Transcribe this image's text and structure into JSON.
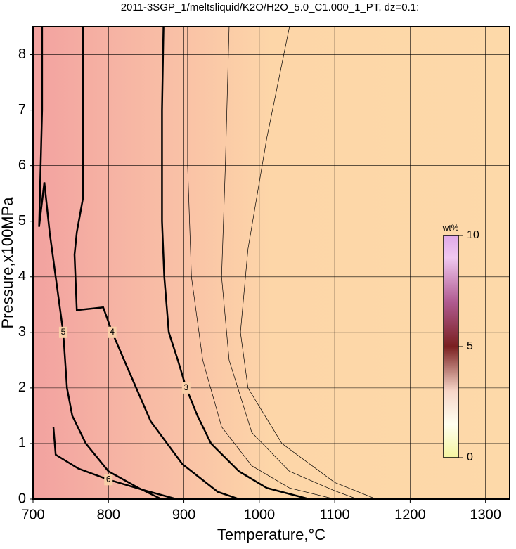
{
  "chart_data": {
    "type": "contour",
    "title": "2011-3SGP_1/meltsliquid/K2O/H2O_5.0_C1.000_1_PT, dz=0.1:",
    "x_label": "Temperature,°C",
    "y_label": "Pressure,x100MPa",
    "xlim": [
      700,
      1332
    ],
    "ylim": [
      0,
      8.5
    ],
    "xticks": [
      700,
      800,
      900,
      1000,
      1100,
      1200,
      1300
    ],
    "yticks": [
      0,
      1,
      2,
      3,
      4,
      5,
      6,
      7,
      8
    ],
    "grid": true,
    "contours": [
      {
        "level": 3,
        "x": [
          873,
          871,
          871,
          874,
          880,
          892,
          903,
          918,
          936,
          973,
          1010,
          1066
        ],
        "y": [
          8.5,
          7,
          5,
          4,
          3,
          2.5,
          2,
          1.5,
          1,
          0.5,
          0.2,
          0
        ]
      },
      {
        "level": 4,
        "x": [
          766,
          766,
          766,
          758,
          755,
          758,
          793,
          805,
          824,
          840,
          856,
          898,
          945,
          973
        ],
        "y": [
          8.5,
          7,
          5.4,
          4.8,
          4.4,
          3.4,
          3.45,
          3,
          2.4,
          1.9,
          1.4,
          0.63,
          0.13,
          0
        ]
      },
      {
        "level": 5,
        "x": [
          712,
          712,
          708,
          715,
          722,
          730,
          740,
          745,
          752,
          770,
          800,
          840,
          870
        ],
        "y": [
          8.5,
          7,
          4.9,
          5.7,
          4.8,
          4,
          3,
          2,
          1.5,
          1,
          0.5,
          0.2,
          0
        ]
      },
      {
        "level": 6,
        "x": [
          727,
          730,
          760,
          800,
          850,
          890
        ],
        "y": [
          1.3,
          0.8,
          0.55,
          0.35,
          0.15,
          0
        ]
      },
      {
        "level": 2.9,
        "x": [
          905,
          905,
          910,
          925,
          950,
          990,
          1040,
          1100
        ],
        "y": [
          8.5,
          6,
          4,
          2.5,
          1.3,
          0.6,
          0.2,
          0
        ]
      },
      {
        "level": 2.8,
        "x": [
          960,
          955,
          950,
          960,
          990,
          1040,
          1100,
          1130
        ],
        "y": [
          8.5,
          6,
          4,
          2.5,
          1.2,
          0.5,
          0.15,
          0
        ]
      },
      {
        "level": 2.7,
        "x": [
          1040,
          1010,
          985,
          975,
          985,
          1030,
          1100,
          1155
        ],
        "y": [
          8.5,
          6.5,
          4.5,
          3,
          2,
          1,
          0.3,
          0
        ]
      }
    ],
    "colorbar": {
      "label": "wt%",
      "lim": [
        0,
        10
      ],
      "ticks": [
        0,
        5,
        10
      ]
    }
  }
}
